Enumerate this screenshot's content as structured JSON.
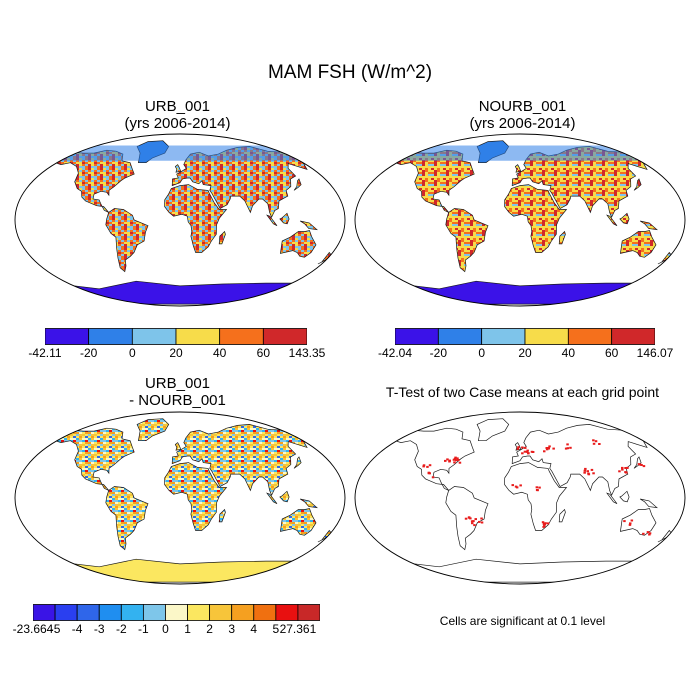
{
  "title": "MAM FSH (W/m^2)",
  "panels": [
    {
      "id": "urb",
      "title_line1": "URB_001",
      "title_line2": "(yrs 2006-2014)",
      "colorbar": {
        "min_label": "-42.11",
        "max_label": "143.35",
        "ticks": [
          "-20",
          "0",
          "20",
          "40",
          "60"
        ],
        "colors": [
          "#3b12e8",
          "#2f80e8",
          "#7ec4ea",
          "#f7dc4a",
          "#f5701c",
          "#d0282a"
        ]
      }
    },
    {
      "id": "nourb",
      "title_line1": "NOURB_001",
      "title_line2": "(yrs 2006-2014)",
      "colorbar": {
        "min_label": "-42.04",
        "max_label": "146.07",
        "ticks": [
          "-20",
          "0",
          "20",
          "40",
          "60"
        ],
        "colors": [
          "#3b12e8",
          "#2f80e8",
          "#7ec4ea",
          "#f7dc4a",
          "#f5701c",
          "#d0282a"
        ]
      }
    },
    {
      "id": "diff",
      "title_line1": "URB_001",
      "title_line2": "- NOURB_001",
      "colorbar": {
        "min_label": "-23.664",
        "max_label": "27.361",
        "ticks": [
          "-5",
          "-4",
          "-3",
          "-2",
          "-1",
          "0",
          "1",
          "2",
          "3",
          "4",
          "5"
        ],
        "colors": [
          "#3a14e6",
          "#2a3ff0",
          "#2f66ea",
          "#1f8ef0",
          "#33b2f0",
          "#7ec6ea",
          "#fbf7c8",
          "#fbe760",
          "#f7c53a",
          "#f5a020",
          "#f07010",
          "#e81010",
          "#c82828"
        ]
      }
    },
    {
      "id": "ttest",
      "title_line1": "T-Test of two Case means at each grid point",
      "note": "Cells are significant at 0.1 level"
    }
  ],
  "map_colors": {
    "ocean": "#ffffff",
    "significant": "#e81c1c"
  }
}
